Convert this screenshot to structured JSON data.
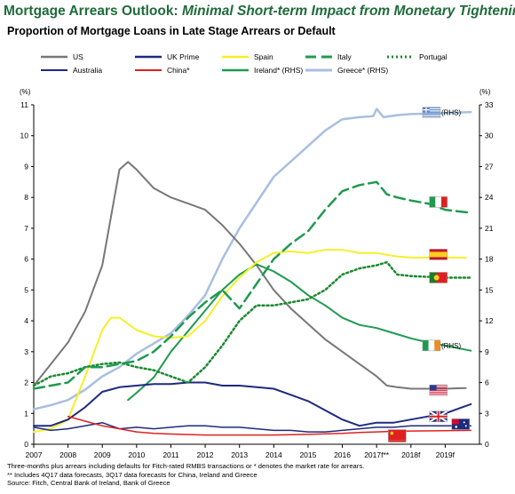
{
  "header": {
    "title_main": "Mortgage Arrears Outlook: ",
    "title_sub": "Minimal Short-term Impact from Monetary Tightening",
    "subtitle": "Proportion of Mortgage Loans in Late Stage Arrears or Default"
  },
  "notes": {
    "line1": "Three-months plus arrears including defaults for Fitch-rated RMBS transactions or * denotes the market rate for arrears.",
    "line2": "** Includes 4Q17 data forecasts, 3Q17 data forecasts for China, Ireland and Greece",
    "line3": "Source: Fitch, Central Bank of Ireland, Bank of Greece"
  },
  "chart_data": {
    "type": "line",
    "left_axis_label": "(%)",
    "right_axis_label": "(%)",
    "left_ylim": [
      0,
      11
    ],
    "right_ylim": [
      0,
      33
    ],
    "left_ticks": [
      "0",
      "1",
      "2",
      "3",
      "4",
      "5",
      "6",
      "7",
      "8",
      "9",
      "10",
      "11"
    ],
    "right_ticks": [
      "0",
      "3",
      "6",
      "9",
      "12",
      "15",
      "18",
      "21",
      "24",
      "27",
      "30",
      "33"
    ],
    "x_tick_labels": [
      "2007",
      "2008",
      "2009",
      "2010",
      "2011",
      "2012",
      "2013",
      "2014",
      "2015",
      "2016",
      "2017f**",
      "2018f",
      "2019f"
    ],
    "x_range": [
      2007,
      2020
    ],
    "rhs_tags": {
      "ireland": "(RHS)",
      "greece": "(RHS)"
    },
    "series": [
      {
        "name": "US",
        "key": "us",
        "color": "#777777",
        "dash": "",
        "width": 2,
        "axis": "left",
        "points": [
          [
            2007,
            1.9
          ],
          [
            2007.5,
            2.6
          ],
          [
            2008,
            3.3
          ],
          [
            2008.5,
            4.3
          ],
          [
            2009,
            5.8
          ],
          [
            2009.5,
            8.9
          ],
          [
            2009.75,
            9.15
          ],
          [
            2010,
            8.9
          ],
          [
            2010.5,
            8.3
          ],
          [
            2011,
            8.0
          ],
          [
            2011.5,
            7.8
          ],
          [
            2012,
            7.6
          ],
          [
            2012.5,
            7.1
          ],
          [
            2013,
            6.5
          ],
          [
            2013.5,
            5.8
          ],
          [
            2014,
            5.0
          ],
          [
            2014.5,
            4.4
          ],
          [
            2015,
            3.9
          ],
          [
            2015.5,
            3.4
          ],
          [
            2016,
            3.0
          ],
          [
            2016.5,
            2.6
          ],
          [
            2017,
            2.2
          ],
          [
            2017.3,
            1.9
          ],
          [
            2017.6,
            1.85
          ],
          [
            2018,
            1.8
          ],
          [
            2019,
            1.8
          ],
          [
            2019.6,
            1.82
          ]
        ]
      },
      {
        "name": "UK Prime",
        "key": "ukprime",
        "color": "#1e2a7e",
        "dash": "",
        "width": 2,
        "axis": "left",
        "points": [
          [
            2007,
            0.6
          ],
          [
            2007.5,
            0.6
          ],
          [
            2008,
            0.8
          ],
          [
            2008.5,
            1.2
          ],
          [
            2009,
            1.7
          ],
          [
            2009.5,
            1.85
          ],
          [
            2010,
            1.9
          ],
          [
            2010.5,
            1.95
          ],
          [
            2011,
            1.95
          ],
          [
            2011.5,
            2.0
          ],
          [
            2012,
            2.0
          ],
          [
            2012.5,
            1.9
          ],
          [
            2013,
            1.9
          ],
          [
            2013.5,
            1.85
          ],
          [
            2014,
            1.8
          ],
          [
            2014.5,
            1.6
          ],
          [
            2015,
            1.4
          ],
          [
            2015.5,
            1.1
          ],
          [
            2016,
            0.8
          ],
          [
            2016.5,
            0.6
          ],
          [
            2017,
            0.7
          ],
          [
            2017.5,
            0.7
          ],
          [
            2018,
            0.8
          ],
          [
            2018.5,
            0.9
          ],
          [
            2019,
            1.0
          ],
          [
            2019.5,
            1.2
          ],
          [
            2019.75,
            1.3
          ]
        ]
      },
      {
        "name": "Spain",
        "key": "spain",
        "color": "#f5ef28",
        "dash": "",
        "width": 2,
        "axis": "left",
        "points": [
          [
            2007,
            0.4
          ],
          [
            2007.5,
            0.5
          ],
          [
            2008,
            0.8
          ],
          [
            2008.5,
            2.2
          ],
          [
            2009,
            3.7
          ],
          [
            2009.25,
            4.1
          ],
          [
            2009.5,
            4.1
          ],
          [
            2010,
            3.7
          ],
          [
            2010.5,
            3.5
          ],
          [
            2011,
            3.45
          ],
          [
            2011.5,
            3.5
          ],
          [
            2012,
            4.0
          ],
          [
            2012.5,
            4.8
          ],
          [
            2013,
            5.4
          ],
          [
            2013.5,
            5.9
          ],
          [
            2014,
            6.2
          ],
          [
            2014.5,
            6.25
          ],
          [
            2015,
            6.2
          ],
          [
            2015.5,
            6.3
          ],
          [
            2016,
            6.3
          ],
          [
            2016.5,
            6.2
          ],
          [
            2017,
            6.2
          ],
          [
            2017.5,
            6.1
          ],
          [
            2018,
            6.05
          ],
          [
            2019,
            6.05
          ],
          [
            2019.6,
            6.05
          ]
        ]
      },
      {
        "name": "Italy",
        "key": "italy",
        "color": "#1f9a50",
        "dash": "12,6",
        "width": 2.5,
        "axis": "left",
        "points": [
          [
            2007,
            1.8
          ],
          [
            2007.5,
            1.9
          ],
          [
            2008,
            2.0
          ],
          [
            2008.5,
            2.5
          ],
          [
            2009,
            2.5
          ],
          [
            2009.5,
            2.6
          ],
          [
            2010,
            2.7
          ],
          [
            2010.5,
            3.0
          ],
          [
            2011,
            3.5
          ],
          [
            2011.5,
            4.1
          ],
          [
            2012,
            4.6
          ],
          [
            2012.5,
            5.0
          ],
          [
            2013,
            4.4
          ],
          [
            2013.5,
            5.2
          ],
          [
            2014,
            6.0
          ],
          [
            2014.5,
            6.5
          ],
          [
            2015,
            6.9
          ],
          [
            2015.5,
            7.6
          ],
          [
            2016,
            8.2
          ],
          [
            2016.5,
            8.4
          ],
          [
            2017,
            8.5
          ],
          [
            2017.3,
            8.1
          ],
          [
            2017.6,
            8.0
          ],
          [
            2018,
            7.9
          ],
          [
            2018.5,
            7.8
          ],
          [
            2019,
            7.6
          ],
          [
            2019.75,
            7.5
          ]
        ]
      },
      {
        "name": "Portugal",
        "key": "portugal",
        "color": "#1a8a2e",
        "dash": "2,3",
        "width": 2.5,
        "axis": "left",
        "points": [
          [
            2007,
            1.9
          ],
          [
            2007.5,
            2.2
          ],
          [
            2008,
            2.3
          ],
          [
            2008.5,
            2.5
          ],
          [
            2009,
            2.6
          ],
          [
            2009.5,
            2.65
          ],
          [
            2010,
            2.5
          ],
          [
            2010.5,
            2.4
          ],
          [
            2011,
            2.2
          ],
          [
            2011.5,
            2.0
          ],
          [
            2012,
            2.5
          ],
          [
            2012.5,
            3.2
          ],
          [
            2013,
            4.0
          ],
          [
            2013.5,
            4.5
          ],
          [
            2014,
            4.5
          ],
          [
            2014.5,
            4.6
          ],
          [
            2015,
            4.7
          ],
          [
            2015.5,
            5.0
          ],
          [
            2016,
            5.5
          ],
          [
            2016.5,
            5.7
          ],
          [
            2017,
            5.8
          ],
          [
            2017.3,
            5.9
          ],
          [
            2017.6,
            5.5
          ],
          [
            2018,
            5.45
          ],
          [
            2019,
            5.4
          ],
          [
            2019.75,
            5.4
          ]
        ]
      },
      {
        "name": "Australia",
        "key": "australia",
        "color": "#1e2a7e",
        "dash": "",
        "width": 1.5,
        "axis": "left",
        "points": [
          [
            2007,
            0.55
          ],
          [
            2007.5,
            0.45
          ],
          [
            2008,
            0.5
          ],
          [
            2008.5,
            0.6
          ],
          [
            2009,
            0.7
          ],
          [
            2009.5,
            0.5
          ],
          [
            2010,
            0.55
          ],
          [
            2010.5,
            0.5
          ],
          [
            2011,
            0.55
          ],
          [
            2011.5,
            0.6
          ],
          [
            2012,
            0.6
          ],
          [
            2012.5,
            0.55
          ],
          [
            2013,
            0.55
          ],
          [
            2013.5,
            0.5
          ],
          [
            2014,
            0.45
          ],
          [
            2014.5,
            0.45
          ],
          [
            2015,
            0.4
          ],
          [
            2015.5,
            0.4
          ],
          [
            2016,
            0.45
          ],
          [
            2016.5,
            0.5
          ],
          [
            2017,
            0.55
          ],
          [
            2017.5,
            0.55
          ],
          [
            2018,
            0.6
          ],
          [
            2019,
            0.6
          ],
          [
            2019.75,
            0.6
          ]
        ]
      },
      {
        "name": "China*",
        "key": "china",
        "color": "#e02020",
        "dash": "",
        "width": 1.5,
        "axis": "left",
        "points": [
          [
            2008,
            0.9
          ],
          [
            2008.5,
            0.75
          ],
          [
            2009,
            0.6
          ],
          [
            2009.5,
            0.5
          ],
          [
            2010,
            0.4
          ],
          [
            2010.5,
            0.35
          ],
          [
            2011,
            0.33
          ],
          [
            2012,
            0.3
          ],
          [
            2013,
            0.3
          ],
          [
            2014,
            0.3
          ],
          [
            2015,
            0.32
          ],
          [
            2016,
            0.35
          ],
          [
            2016.5,
            0.38
          ],
          [
            2017,
            0.4
          ],
          [
            2017.5,
            0.42
          ],
          [
            2018,
            0.43
          ],
          [
            2019,
            0.44
          ],
          [
            2019.75,
            0.45
          ]
        ]
      },
      {
        "name": "Ireland* (RHS)",
        "key": "ireland",
        "color": "#1f9a50",
        "dash": "",
        "width": 2,
        "axis": "right",
        "points": [
          [
            2009.75,
            4.3
          ],
          [
            2010,
            5.0
          ],
          [
            2010.5,
            6.5
          ],
          [
            2011,
            9.0
          ],
          [
            2011.5,
            11.0
          ],
          [
            2012,
            13.0
          ],
          [
            2012.5,
            15.0
          ],
          [
            2013,
            16.5
          ],
          [
            2013.5,
            17.5
          ],
          [
            2014,
            16.8
          ],
          [
            2014.5,
            15.8
          ],
          [
            2015,
            14.5
          ],
          [
            2015.5,
            13.5
          ],
          [
            2016,
            12.3
          ],
          [
            2016.5,
            11.6
          ],
          [
            2017,
            11.3
          ],
          [
            2017.5,
            10.8
          ],
          [
            2018,
            10.3
          ],
          [
            2018.5,
            9.9
          ],
          [
            2019,
            9.6
          ],
          [
            2019.75,
            9.1
          ]
        ]
      },
      {
        "name": "Greece* (RHS)",
        "key": "greece",
        "color": "#a9bfdf",
        "dash": "",
        "width": 2.5,
        "axis": "right",
        "points": [
          [
            2007,
            3.4
          ],
          [
            2007.5,
            3.8
          ],
          [
            2008,
            4.3
          ],
          [
            2008.5,
            5.3
          ],
          [
            2009,
            6.6
          ],
          [
            2009.5,
            7.5
          ],
          [
            2010,
            8.8
          ],
          [
            2010.5,
            9.8
          ],
          [
            2011,
            10.8
          ],
          [
            2011.5,
            12.5
          ],
          [
            2012,
            14.5
          ],
          [
            2012.5,
            18.0
          ],
          [
            2013,
            21.0
          ],
          [
            2013.5,
            23.5
          ],
          [
            2014,
            26.0
          ],
          [
            2014.5,
            27.5
          ],
          [
            2015,
            29.0
          ],
          [
            2015.5,
            30.5
          ],
          [
            2016,
            31.6
          ],
          [
            2016.5,
            31.8
          ],
          [
            2016.9,
            31.9
          ],
          [
            2017,
            32.6
          ],
          [
            2017.2,
            31.8
          ],
          [
            2017.6,
            32.0
          ],
          [
            2018,
            32.1
          ],
          [
            2019,
            32.2
          ],
          [
            2019.75,
            32.3
          ]
        ]
      }
    ],
    "flags": [
      {
        "name": "greece-flag-icon",
        "x": 2018.6,
        "value": 10.75
      },
      {
        "name": "italy-flag-icon",
        "x": 2018.8,
        "value": 7.85
      },
      {
        "name": "spain-flag-icon",
        "x": 2018.8,
        "value": 6.15
      },
      {
        "name": "portugal-flag-icon",
        "x": 2018.8,
        "value": 5.4
      },
      {
        "name": "ireland-flag-icon",
        "x": 2018.6,
        "value": 3.2
      },
      {
        "name": "us-flag-icon",
        "x": 2018.8,
        "value": 1.75
      },
      {
        "name": "uk-flag-icon",
        "x": 2018.8,
        "value": 0.9
      },
      {
        "name": "australia-flag-icon",
        "x": 2019.45,
        "value": 0.65
      },
      {
        "name": "china-flag-icon",
        "x": 2017.6,
        "value": 0.3
      }
    ]
  }
}
